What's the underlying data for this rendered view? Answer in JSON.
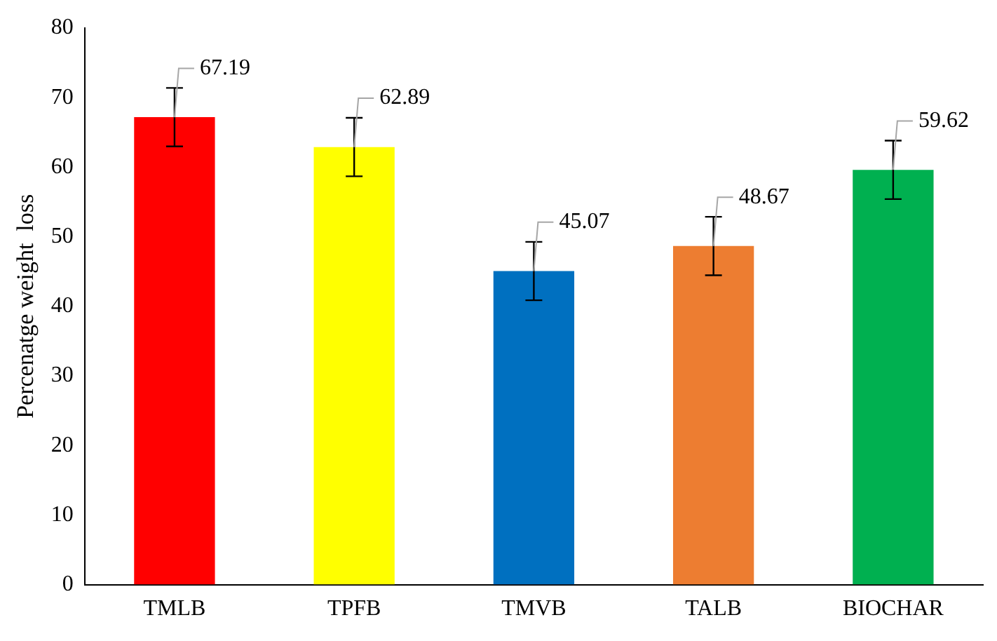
{
  "chart_data": {
    "type": "bar",
    "ylabel": "Percenatge weight  loss",
    "categories": [
      "TMLB",
      "TPFB",
      "TMVB",
      "TALB",
      "BIOCHAR"
    ],
    "values": [
      67.19,
      62.89,
      45.07,
      48.67,
      59.62
    ],
    "colors": [
      "#ff0000",
      "#ffff00",
      "#0070c0",
      "#ed7d31",
      "#00b050"
    ],
    "errors": [
      4.2,
      4.2,
      4.2,
      4.2,
      4.2
    ],
    "data_labels": true,
    "ylim": [
      0,
      80
    ],
    "yticks": [
      0,
      10,
      20,
      30,
      40,
      50,
      60,
      70,
      80
    ],
    "grid": false,
    "legend": false
  }
}
